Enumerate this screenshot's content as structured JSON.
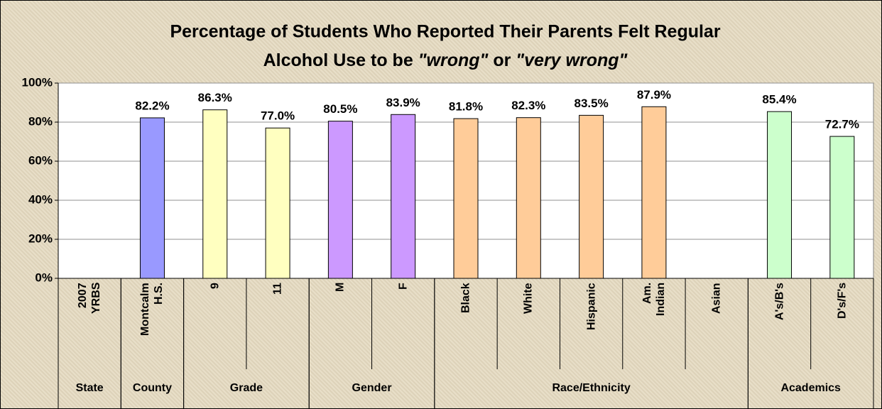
{
  "chart_data": {
    "type": "bar",
    "title": {
      "line1": "Percentage of Students Who Reported Their Parents Felt Regular",
      "line2": [
        "Alcohol Use to be ",
        "\"wrong\"",
        " or ",
        "\"very wrong\""
      ]
    },
    "categories": [
      "2007\nYRBS",
      "Montcalm\nH.S.",
      "9",
      "11",
      "M",
      "F",
      "Black",
      "White",
      "Hispanic",
      "Am.\nIndian",
      "Asian",
      "A's/B's",
      "D's/F's"
    ],
    "values": [
      null,
      82.2,
      86.3,
      77.0,
      80.5,
      83.9,
      81.8,
      82.3,
      83.5,
      87.9,
      null,
      85.4,
      72.7
    ],
    "value_labels": [
      null,
      "82.2%",
      "86.3%",
      "77.0%",
      "80.5%",
      "83.9%",
      "81.8%",
      "82.3%",
      "83.5%",
      "87.9%",
      null,
      "85.4%",
      "72.7%"
    ],
    "colors": [
      null,
      "#9999ff",
      "#ffffc0",
      "#ffffc0",
      "#cc99ff",
      "#cc99ff",
      "#ffcc99",
      "#ffcc99",
      "#ffcc99",
      "#ffcc99",
      "#ffcc99",
      "#ccffcc",
      "#ccffcc"
    ],
    "groups": [
      "State",
      "County",
      "Grade",
      "Gender",
      "Race/Ethnicity",
      "Academics"
    ],
    "ylim": [
      0,
      100
    ],
    "yticks": [
      {
        "value": 0,
        "label": "0%"
      },
      {
        "value": 20,
        "label": "20%"
      },
      {
        "value": 40,
        "label": "40%"
      },
      {
        "value": 60,
        "label": "60%"
      },
      {
        "value": 80,
        "label": "80%"
      },
      {
        "value": 100,
        "label": "100%"
      }
    ],
    "grid": true
  }
}
